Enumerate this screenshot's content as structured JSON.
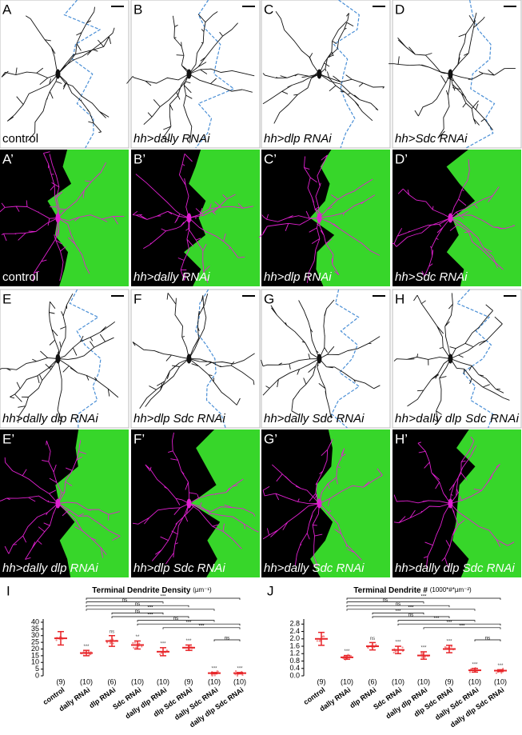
{
  "panels": [
    {
      "label": "A",
      "caption": "control"
    },
    {
      "label": "B",
      "caption": "hh>dally RNAi"
    },
    {
      "label": "C",
      "caption": "hh>dlp RNAi"
    },
    {
      "label": "D",
      "caption": "hh>Sdc RNAi"
    },
    {
      "label": "A’",
      "caption": "control"
    },
    {
      "label": "B’",
      "caption": "hh>dally RNAi"
    },
    {
      "label": "C’",
      "caption": "hh>dlp RNAi"
    },
    {
      "label": "D’",
      "caption": "hh>Sdc RNAi"
    },
    {
      "label": "E",
      "caption": "hh>dally dlp RNAi"
    },
    {
      "label": "F",
      "caption": "hh>dlp Sdc RNAi"
    },
    {
      "label": "G",
      "caption": "hh>dally Sdc RNAi"
    },
    {
      "label": "H",
      "caption": "hh>dally dlp Sdc RNAi"
    },
    {
      "label": "E’",
      "caption": "hh>dally dlp RNAi"
    },
    {
      "label": "F’",
      "caption": "hh>dlp Sdc RNAi"
    },
    {
      "label": "G’",
      "caption": "hh>dally Sdc RNAi"
    },
    {
      "label": "H’",
      "caption": "hh>dally dlp Sdc RNAi"
    }
  ],
  "chart_data": [
    {
      "type": "dot",
      "panel": "I",
      "title": "Terminal Dendrite Density",
      "unit": "(µm⁻¹)",
      "categories": [
        "control",
        "dally RNAi",
        "dlp RNAi",
        "Sdc RNAi",
        "dally dlp RNAi",
        "dlp Sdc RNAi",
        "dally Sdc RNAi",
        "dally dlp Sdc RNAi"
      ],
      "values": [
        28,
        17,
        26,
        23,
        18,
        21,
        2,
        2
      ],
      "errors": [
        5,
        2,
        4,
        3,
        3,
        2,
        0.5,
        0.5
      ],
      "n_labels": [
        "(9)",
        "(10)",
        "(6)",
        "(10)",
        "(10)",
        "(9)",
        "(10)",
        "(10)"
      ],
      "significance": [
        null,
        "***",
        "ns",
        "**",
        "***",
        "***",
        "***",
        "***"
      ],
      "comparisons": [
        "***",
        "ns",
        "ns",
        "***",
        "ns",
        "***",
        "ns",
        "***",
        "***",
        "ns"
      ],
      "color": "#e8262a",
      "ylim": [
        0,
        40
      ],
      "yticks": [
        0,
        5,
        10,
        15,
        20,
        25,
        30,
        35,
        40
      ]
    },
    {
      "type": "dot",
      "panel": "J",
      "title": "Terminal Dendrite #",
      "unit": "(1000*#*µm⁻²)",
      "categories": [
        "control",
        "dally RNAi",
        "dlp RNAi",
        "Sdc RNAi",
        "dally dlp RNAi",
        "dlp Sdc RNAi",
        "dally Sdc RNAi",
        "dally dlp Sdc RNAi"
      ],
      "values": [
        2.0,
        1.0,
        1.6,
        1.4,
        1.1,
        1.45,
        0.3,
        0.28
      ],
      "errors": [
        0.35,
        0.1,
        0.2,
        0.2,
        0.2,
        0.2,
        0.1,
        0.05
      ],
      "n_labels": [
        "(9)",
        "(10)",
        "(6)",
        "(10)",
        "(10)",
        "(9)",
        "(10)",
        "(10)"
      ],
      "significance": [
        null,
        "***",
        "ns",
        "***",
        "***",
        "***",
        "***",
        "***"
      ],
      "comparisons": [
        "***",
        "ns",
        "ns",
        "***",
        "***",
        "ns",
        "***",
        "***",
        "***",
        "ns"
      ],
      "color": "#e8262a",
      "ylim": [
        0,
        2.9
      ],
      "yticks": [
        {
          "value": 0,
          "label": "0.0"
        },
        0.4,
        0.8,
        1.2,
        1.6,
        {
          "value": 2,
          "label": "2.0"
        },
        2.4,
        2.8
      ]
    }
  ]
}
